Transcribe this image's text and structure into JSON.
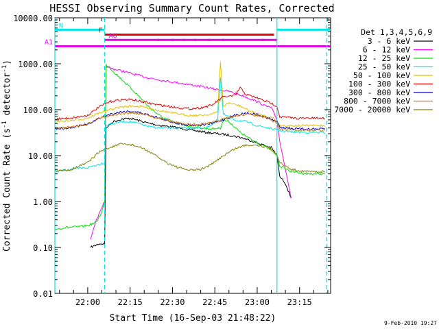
{
  "chart_data": {
    "type": "line",
    "title": "HESSI Observing Summary Count Rates, Corrected",
    "xlabel": "Start Time (16-Sep-03 21:48:22)",
    "ylabel": "Corrected Count Rate (s",
    "ylabel_tail": "detector",
    "ylabel_sup": "-1",
    "ylabel_sep": " ",
    "ylabel_open": "",
    "ylabel_close": ")",
    "y_scale": "log",
    "ylim": [
      0.01,
      10000
    ],
    "xlim": [
      "21:48:22",
      "23:26:00"
    ],
    "x_ticks": [
      "22:00",
      "22:15",
      "22:30",
      "22:45",
      "23:00",
      "23:15"
    ],
    "y_ticks": [
      "0.01",
      "0.10",
      "1.00",
      "10.00",
      "100.00",
      "1000.00",
      "10000.00"
    ],
    "legend_title": "Det 1,3,4,5,6,9",
    "legend_position": "right",
    "flags": [
      {
        "label": "N",
        "color": "#00e5e5",
        "level": 5500,
        "start": "21:48:22",
        "end": "22:06:00",
        "start2": "23:07:00",
        "end2": "23:26:00"
      },
      {
        "label": "F",
        "color": "#e60000",
        "level": 4300,
        "start": "22:06:00",
        "end": "23:06:00"
      },
      {
        "label": "A0",
        "color": "#e000e0",
        "level": 3300,
        "start": "22:06:00",
        "end": "23:07:00"
      },
      {
        "label": "A1",
        "color": "#e000e0",
        "level": 2400,
        "start": "21:48:22",
        "end": "23:26:00"
      }
    ],
    "a0_dots": [
      "22:25",
      "22:30",
      "22:34",
      "22:38",
      "22:43",
      "22:48",
      "23:02"
    ],
    "vlines": [
      {
        "t": "21:48:22",
        "style": "solid"
      },
      {
        "t": "22:06:00",
        "style": "dashed"
      },
      {
        "t": "23:07:00",
        "style": "solid"
      },
      {
        "t": "23:24:30",
        "style": "dashed"
      }
    ],
    "series": [
      {
        "name": "3 - 6 keV",
        "color": "#000000",
        "x": [
          "22:01",
          "22:04",
          "22:06",
          "22:06:30",
          "22:09",
          "22:12",
          "22:15",
          "22:18",
          "22:22",
          "22:26",
          "22:30",
          "22:34",
          "22:38",
          "22:42",
          "22:46",
          "22:50",
          "22:54",
          "22:58",
          "23:02",
          "23:05",
          "23:07",
          "23:08",
          "23:10",
          "23:12"
        ],
        "y": [
          0.1,
          0.12,
          0.12,
          40,
          55,
          62,
          65,
          58,
          50,
          45,
          42,
          38,
          35,
          32,
          30,
          28,
          25,
          21,
          17,
          15,
          10,
          3.5,
          2.5,
          1.2
        ]
      },
      {
        "name": "6 - 12 keV",
        "color": "#ff00ff",
        "x": [
          "22:01",
          "22:03",
          "22:05",
          "22:06",
          "22:06:30",
          "22:08",
          "22:12",
          "22:16",
          "22:20",
          "22:25",
          "22:30",
          "22:35",
          "22:40",
          "22:45",
          "22:50",
          "22:55",
          "23:00",
          "23:03",
          "23:05",
          "23:07",
          "23:08",
          "23:10",
          "23:12"
        ],
        "y": [
          0.15,
          0.4,
          0.7,
          1.0,
          900,
          800,
          700,
          600,
          520,
          450,
          400,
          360,
          320,
          280,
          250,
          200,
          150,
          120,
          110,
          60,
          20,
          5,
          1.2
        ]
      },
      {
        "name": "12 - 25 keV",
        "color": "#00e000",
        "x": [
          "21:48:22",
          "21:52",
          "21:56",
          "22:00",
          "22:03",
          "22:05",
          "22:06",
          "22:06:30",
          "22:08",
          "22:10",
          "22:14",
          "22:18",
          "22:22",
          "22:26",
          "22:30",
          "22:35",
          "22:40",
          "22:44",
          "22:47",
          "22:48",
          "22:50",
          "22:54",
          "22:58",
          "23:02",
          "23:05",
          "23:07",
          "23:08",
          "23:12",
          "23:18",
          "23:24"
        ],
        "y": [
          0.25,
          0.27,
          0.28,
          0.3,
          0.35,
          0.6,
          1.0,
          950,
          800,
          600,
          350,
          200,
          110,
          70,
          55,
          45,
          40,
          38,
          40,
          60,
          55,
          32,
          22,
          17,
          13,
          10,
          6,
          4.5,
          4,
          4
        ]
      },
      {
        "name": "25 - 50 keV",
        "color": "#00e5e5",
        "x": [
          "21:48:22",
          "21:54",
          "22:00",
          "22:04",
          "22:06",
          "22:06:30",
          "22:09",
          "22:12",
          "22:15",
          "22:18",
          "22:22",
          "22:26",
          "22:30",
          "22:34",
          "22:38",
          "22:42",
          "22:46",
          "22:47",
          "22:48",
          "22:52",
          "22:56",
          "23:00",
          "23:04",
          "23:07",
          "23:08",
          "23:12",
          "23:18",
          "23:24"
        ],
        "y": [
          4.5,
          5,
          5.5,
          6.5,
          7,
          45,
          50,
          55,
          55,
          50,
          42,
          40,
          40,
          40,
          40,
          40,
          60,
          500,
          80,
          60,
          55,
          45,
          40,
          36,
          35,
          33,
          32,
          32
        ]
      },
      {
        "name": "50 - 100 keV",
        "color": "#e8c000",
        "x": [
          "21:48:22",
          "21:54",
          "22:00",
          "22:04",
          "22:08",
          "22:12",
          "22:16",
          "22:20",
          "22:24",
          "22:28",
          "22:32",
          "22:36",
          "22:40",
          "22:44",
          "22:46",
          "22:47",
          "22:48",
          "22:50",
          "22:54",
          "22:58",
          "23:02",
          "23:06",
          "23:08",
          "23:14",
          "23:24"
        ],
        "y": [
          55,
          58,
          65,
          85,
          100,
          115,
          120,
          115,
          100,
          90,
          80,
          75,
          75,
          80,
          90,
          1100,
          120,
          140,
          120,
          90,
          75,
          65,
          45,
          45,
          45
        ]
      },
      {
        "name": "100 - 300 keV",
        "color": "#e00000",
        "x": [
          "21:48:22",
          "21:54",
          "22:00",
          "22:04",
          "22:08",
          "22:12",
          "22:16",
          "22:20",
          "22:24",
          "22:28",
          "22:32",
          "22:36",
          "22:40",
          "22:44",
          "22:48",
          "22:52",
          "22:54",
          "22:56",
          "23:00",
          "23:04",
          "23:07",
          "23:08",
          "23:14",
          "23:24"
        ],
        "y": [
          62,
          66,
          75,
          115,
          150,
          165,
          165,
          145,
          130,
          120,
          110,
          105,
          110,
          125,
          190,
          200,
          300,
          215,
          180,
          145,
          120,
          70,
          65,
          65
        ]
      },
      {
        "name": "300 - 800 keV",
        "color": "#0000e0",
        "x": [
          "21:48:22",
          "21:54",
          "22:00",
          "22:04",
          "22:08",
          "22:12",
          "22:16",
          "22:20",
          "22:24",
          "22:28",
          "22:32",
          "22:36",
          "22:40",
          "22:44",
          "22:48",
          "22:52",
          "22:56",
          "23:00",
          "23:04",
          "23:07",
          "23:08",
          "23:14",
          "23:24"
        ],
        "y": [
          38,
          41,
          48,
          65,
          80,
          90,
          92,
          82,
          70,
          58,
          50,
          46,
          46,
          50,
          60,
          75,
          85,
          78,
          65,
          55,
          42,
          38,
          38
        ]
      },
      {
        "name": "800 - 7000 keV",
        "color": "#d47800",
        "x": [
          "21:48:22",
          "21:54",
          "22:00",
          "22:04",
          "22:08",
          "22:12",
          "22:16",
          "22:20",
          "22:24",
          "22:28",
          "22:32",
          "22:36",
          "22:40",
          "22:44",
          "22:48",
          "22:52",
          "22:56",
          "23:00",
          "23:04",
          "23:07",
          "23:08",
          "23:14",
          "23:24"
        ],
        "y": [
          40,
          42,
          48,
          65,
          75,
          82,
          85,
          78,
          68,
          58,
          52,
          48,
          48,
          52,
          62,
          72,
          80,
          75,
          62,
          52,
          38,
          36,
          36
        ]
      },
      {
        "name": "7000 - 20000 keV",
        "color": "#808000",
        "x": [
          "21:48:22",
          "21:54",
          "22:00",
          "22:04",
          "22:08",
          "22:12",
          "22:16",
          "22:20",
          "22:24",
          "22:28",
          "22:32",
          "22:36",
          "22:40",
          "22:44",
          "22:48",
          "22:52",
          "22:56",
          "23:00",
          "23:04",
          "23:07",
          "23:08",
          "23:12",
          "23:18",
          "23:24"
        ],
        "y": [
          4.5,
          5,
          7,
          12,
          15,
          18,
          17,
          14,
          10,
          7,
          5.5,
          4.8,
          5,
          6.5,
          10,
          14,
          17,
          17,
          15,
          11,
          7,
          5,
          4.5,
          4.5
        ]
      }
    ]
  },
  "timestamp": "9-Feb-2010 19:27"
}
